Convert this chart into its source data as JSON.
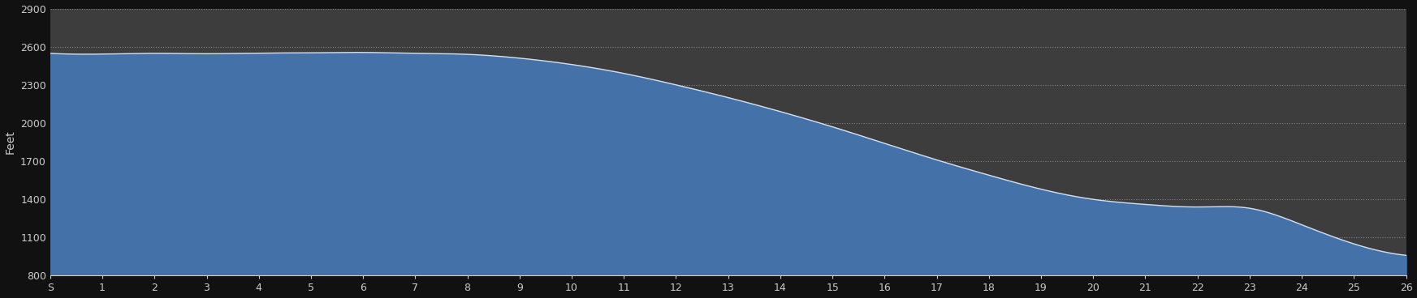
{
  "background_color": "#111111",
  "plot_bg_color": "#3d3d3d",
  "fill_color": "#4472a8",
  "line_color": "#d8e0ec",
  "grid_color": "#888888",
  "ylabel": "Feet",
  "ylim": [
    800,
    2900
  ],
  "yticks": [
    800,
    1100,
    1400,
    1700,
    2000,
    2300,
    2600,
    2900
  ],
  "xlabel_labels": [
    "S",
    "1",
    "2",
    "3",
    "4",
    "5",
    "6",
    "7",
    "8",
    "9",
    "10",
    "11",
    "12",
    "13",
    "14",
    "15",
    "16",
    "17",
    "18",
    "19",
    "20",
    "21",
    "22",
    "23",
    "24",
    "25",
    "26"
  ],
  "text_color": "#cccccc",
  "elevation_profile": [
    2548,
    2542,
    2548,
    2545,
    2550,
    2552,
    2555,
    2548,
    2540,
    2510,
    2460,
    2390,
    2300,
    2200,
    2090,
    1970,
    1840,
    1710,
    1590,
    1480,
    1400,
    1360,
    1340,
    1330,
    1200,
    1050,
    960
  ],
  "x_positions": [
    0,
    1,
    2,
    3,
    4,
    5,
    6,
    7,
    8,
    9,
    10,
    11,
    12,
    13,
    14,
    15,
    16,
    17,
    18,
    19,
    20,
    21,
    22,
    23,
    24,
    25,
    26
  ]
}
